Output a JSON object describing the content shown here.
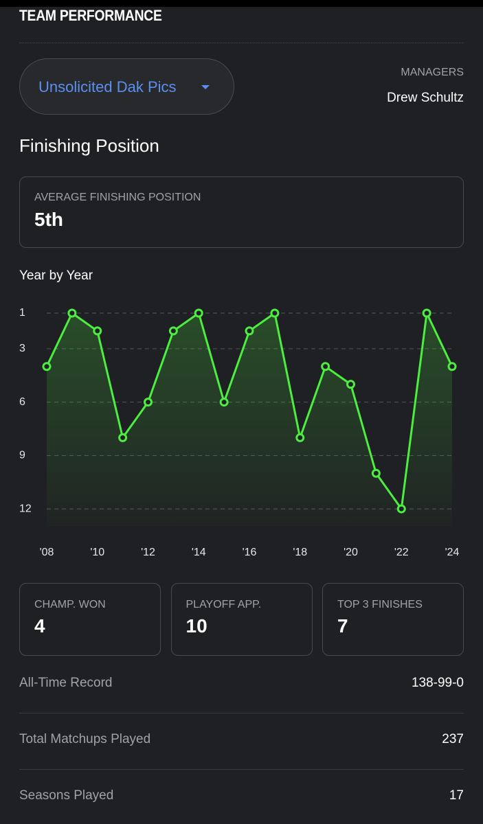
{
  "header": {
    "title": "TEAM PERFORMANCE"
  },
  "team_selector": {
    "label": "Unsolicited Dak Pics"
  },
  "managers": {
    "label": "MANAGERS",
    "names": [
      "Drew Schultz"
    ]
  },
  "section_title": "Finishing Position",
  "average": {
    "label": "AVERAGE FINISHING POSITION",
    "value": "5th"
  },
  "chart_data": {
    "type": "line",
    "title": "Year by Year",
    "categories": [
      "'08",
      null,
      "'10",
      null,
      "'12",
      null,
      "'14",
      null,
      "'16",
      null,
      "'18",
      null,
      "'20",
      null,
      "'22",
      null,
      "'24"
    ],
    "values": [
      4,
      1,
      2,
      8,
      6,
      2,
      1,
      6,
      2,
      1,
      8,
      4,
      5,
      10,
      12,
      1,
      4
    ],
    "color": "#4cee3f",
    "ylim": [
      13,
      1
    ],
    "yticks": [
      1,
      3,
      6,
      9,
      12
    ],
    "grid": true
  },
  "stats": [
    {
      "label": "CHAMP. WON",
      "value": 4
    },
    {
      "label": "PLAYOFF APP.",
      "value": 10
    },
    {
      "label": "TOP 3 FINISHES",
      "value": 7
    }
  ],
  "records": [
    {
      "label": "All-Time Record",
      "value": "138-99-0"
    },
    {
      "label": "Total Matchups Played",
      "value": 237
    },
    {
      "label": "Seasons Played",
      "value": 17
    }
  ]
}
